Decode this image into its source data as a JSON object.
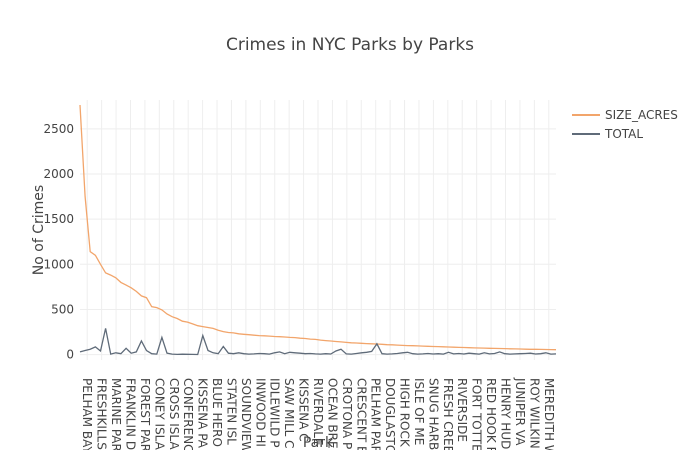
{
  "chart_data": {
    "type": "line",
    "title": "Crimes in NYC Parks by Parks",
    "xlabel": "Park",
    "ylabel": "No of Crimes",
    "ylim": [
      -60,
      2820
    ],
    "yticks": [
      0,
      500,
      1000,
      1500,
      2000,
      2500
    ],
    "grid": true,
    "legend_position": "top-right",
    "x_tick_labels": [
      "PELHAM BAY",
      "FRESHKILLS",
      "MARINE PAR",
      "FRANKLIN D",
      "FOREST PAR",
      "CONEY ISLA",
      "CROSS ISLA",
      "CONFERENC",
      "KISSENA PA",
      "BLUE HERO",
      "STATEN ISL",
      "SOUNDVIEW",
      "INWOOD HI",
      "IDLEWILD P",
      "SAW MILL C",
      "KISSENA C",
      "RIVERDALE",
      "OCEAN BRE",
      "CROTONA P",
      "CRESCENT B",
      "PELHAM PAR",
      "DOUGLASTO",
      "HIGH ROCK",
      "ISLE OF ME",
      "SNUG HARB",
      "FRESH CREE",
      "RIVERSIDE",
      "FORT TOTTE",
      "RED HOOK R",
      "HENRY HUD",
      "JUNIPER VA",
      "ROY WILKIN",
      "MEREDITH W"
    ],
    "series": [
      {
        "name": "SIZE_ACRES",
        "color": "#f2a56b",
        "values": [
          2765,
          1750,
          1140,
          1100,
          1000,
          905,
          880,
          850,
          800,
          770,
          740,
          700,
          650,
          630,
          530,
          520,
          495,
          450,
          420,
          400,
          370,
          360,
          340,
          320,
          310,
          300,
          290,
          270,
          255,
          245,
          240,
          230,
          225,
          220,
          215,
          210,
          208,
          205,
          200,
          198,
          195,
          190,
          188,
          182,
          178,
          172,
          168,
          160,
          155,
          150,
          145,
          140,
          135,
          130,
          128,
          125,
          122,
          120,
          117,
          114,
          110,
          108,
          105,
          102,
          100,
          98,
          96,
          94,
          92,
          90,
          88,
          86,
          84,
          82,
          80,
          78,
          76,
          74,
          73,
          72,
          70,
          68,
          67,
          66,
          64,
          63,
          62,
          60,
          59,
          58,
          57,
          56,
          55,
          54
        ]
      },
      {
        "name": "TOTAL",
        "color": "#5f6b79",
        "values": [
          30,
          45,
          60,
          85,
          40,
          290,
          5,
          20,
          10,
          70,
          15,
          30,
          150,
          45,
          10,
          5,
          190,
          15,
          5,
          2,
          4,
          3,
          2,
          1,
          210,
          45,
          20,
          10,
          90,
          15,
          10,
          20,
          10,
          5,
          8,
          12,
          10,
          5,
          20,
          30,
          10,
          25,
          20,
          15,
          10,
          12,
          8,
          5,
          10,
          6,
          40,
          60,
          8,
          5,
          12,
          20,
          25,
          35,
          120,
          10,
          5,
          8,
          12,
          20,
          25,
          10,
          5,
          8,
          12,
          6,
          10,
          5,
          25,
          8,
          12,
          6,
          15,
          10,
          5,
          20,
          8,
          12,
          30,
          10,
          5,
          8,
          10,
          12,
          15,
          6,
          10,
          20,
          5,
          8
        ]
      }
    ]
  }
}
